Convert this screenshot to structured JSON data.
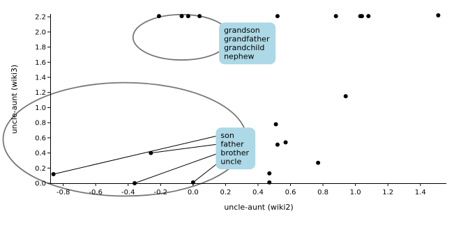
{
  "chart_data": {
    "type": "scatter",
    "xlabel": "uncle-aunt (wiki2)",
    "ylabel": "uncle-aunt (wiki3)",
    "xlim": [
      -0.88,
      1.56
    ],
    "ylim": [
      0.0,
      2.22
    ],
    "x_ticks": [
      -0.8,
      -0.6,
      -0.4,
      -0.2,
      0.0,
      0.2,
      0.4,
      0.6,
      0.8,
      1.0,
      1.2,
      1.4
    ],
    "y_ticks": [
      0.0,
      0.2,
      0.4,
      0.6,
      0.8,
      1.0,
      1.2,
      1.4,
      1.6,
      1.8,
      2.0,
      2.2
    ],
    "points": [
      {
        "x": -0.21,
        "y": 2.21
      },
      {
        "x": -0.07,
        "y": 2.21
      },
      {
        "x": -0.03,
        "y": 2.21
      },
      {
        "x": 0.04,
        "y": 2.21
      },
      {
        "x": 0.52,
        "y": 2.21
      },
      {
        "x": 0.88,
        "y": 2.21
      },
      {
        "x": 1.03,
        "y": 2.21
      },
      {
        "x": 1.04,
        "y": 2.21
      },
      {
        "x": 1.08,
        "y": 2.21
      },
      {
        "x": 1.51,
        "y": 2.22
      },
      {
        "x": 0.94,
        "y": 1.15
      },
      {
        "x": 0.51,
        "y": 0.78
      },
      {
        "x": 0.52,
        "y": 0.51
      },
      {
        "x": 0.57,
        "y": 0.54
      },
      {
        "x": -0.26,
        "y": 0.4
      },
      {
        "x": 0.77,
        "y": 0.27
      },
      {
        "x": 0.47,
        "y": 0.13
      },
      {
        "x": -0.86,
        "y": 0.12
      },
      {
        "x": -0.36,
        "y": 0.0
      },
      {
        "x": 0.0,
        "y": 0.01
      },
      {
        "x": 0.47,
        "y": 0.01
      }
    ],
    "circles": [
      {
        "cx": -0.07,
        "cy": 1.93,
        "r": 0.3
      },
      {
        "cx": -0.42,
        "cy": 0.58,
        "r": 0.75
      }
    ],
    "annotations": [
      {
        "labels": [
          "grandson",
          "grandfather",
          "grandchild",
          "nephew"
        ],
        "anchor": {
          "x": 0.19,
          "y": 2.08
        },
        "box_color": "#add8e6"
      },
      {
        "labels": [
          "son",
          "father",
          "brother",
          "uncle"
        ],
        "anchor": {
          "x": 0.17,
          "y": 0.69
        },
        "box_color": "#add8e6",
        "targets": [
          {
            "x": -0.86,
            "y": 0.12
          },
          {
            "x": -0.26,
            "y": 0.4
          },
          {
            "x": -0.36,
            "y": 0.0
          },
          {
            "x": 0.0,
            "y": 0.01
          }
        ]
      }
    ]
  }
}
